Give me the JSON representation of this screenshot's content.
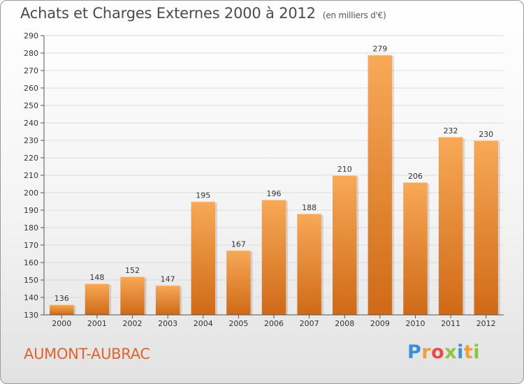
{
  "header": {
    "title": "Achats et Charges Externes 2000 à 2012",
    "subtitle": "(en milliers d'€)"
  },
  "footer": {
    "city": "AUMONT-AUBRAC",
    "logo_text": "Proxiti"
  },
  "colors": {
    "bar_top": "#f8a957",
    "bar_bottom": "#cf6a17",
    "grid": "#dcdcdc",
    "axis": "#555555"
  },
  "chart_data": {
    "type": "bar",
    "title": "Achats et Charges Externes 2000 à 2012",
    "xlabel": "",
    "ylabel": "",
    "categories": [
      "2000",
      "2001",
      "2002",
      "2003",
      "2004",
      "2005",
      "2006",
      "2007",
      "2008",
      "2009",
      "2010",
      "2011",
      "2012"
    ],
    "values": [
      136,
      148,
      152,
      147,
      195,
      167,
      196,
      188,
      210,
      279,
      206,
      232,
      230
    ],
    "ylim": [
      130,
      290
    ],
    "ytick_step": 10,
    "grid": true,
    "legend": "none"
  }
}
